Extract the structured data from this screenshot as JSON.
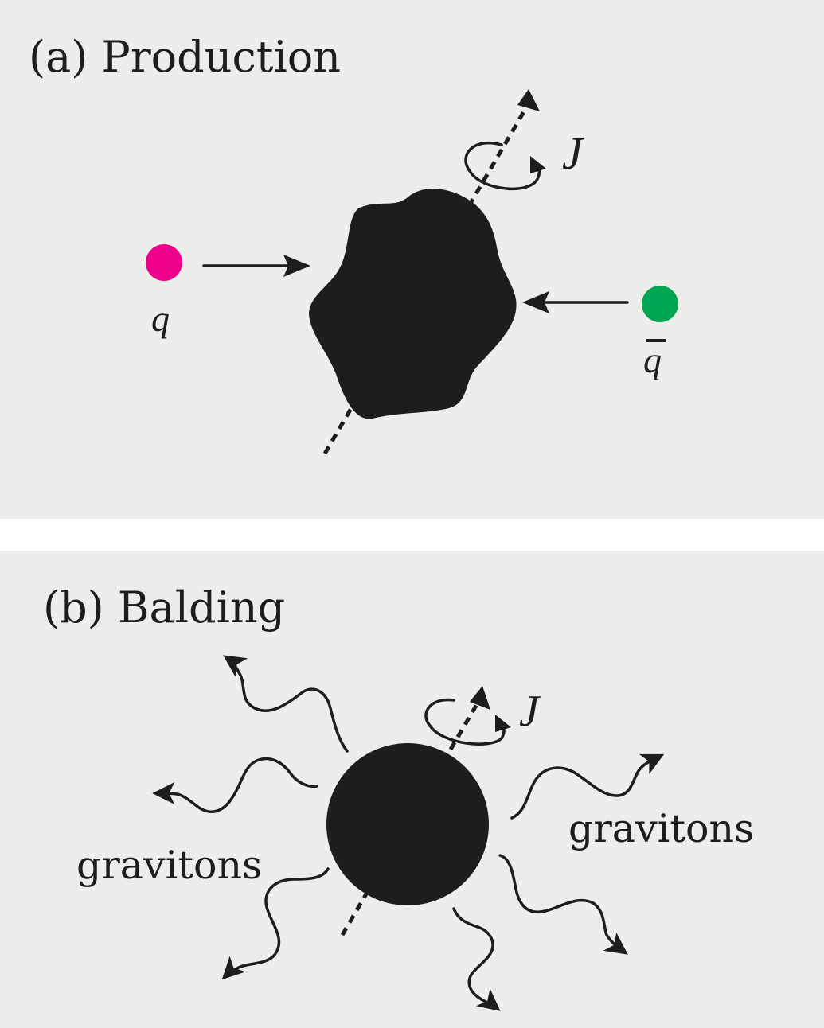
{
  "panel_a": {
    "title": "(a) Production",
    "quark_label": "q",
    "antiquark_label": "q",
    "spin_label": "J",
    "colors": {
      "quark": "#ec008c",
      "antiquark": "#00a651",
      "blob": "#1e1c1d",
      "background": "#ededeb"
    }
  },
  "panel_b": {
    "title": "(b) Balding",
    "spin_label": "J",
    "left_label": "gravitons",
    "right_label": "gravitons"
  }
}
